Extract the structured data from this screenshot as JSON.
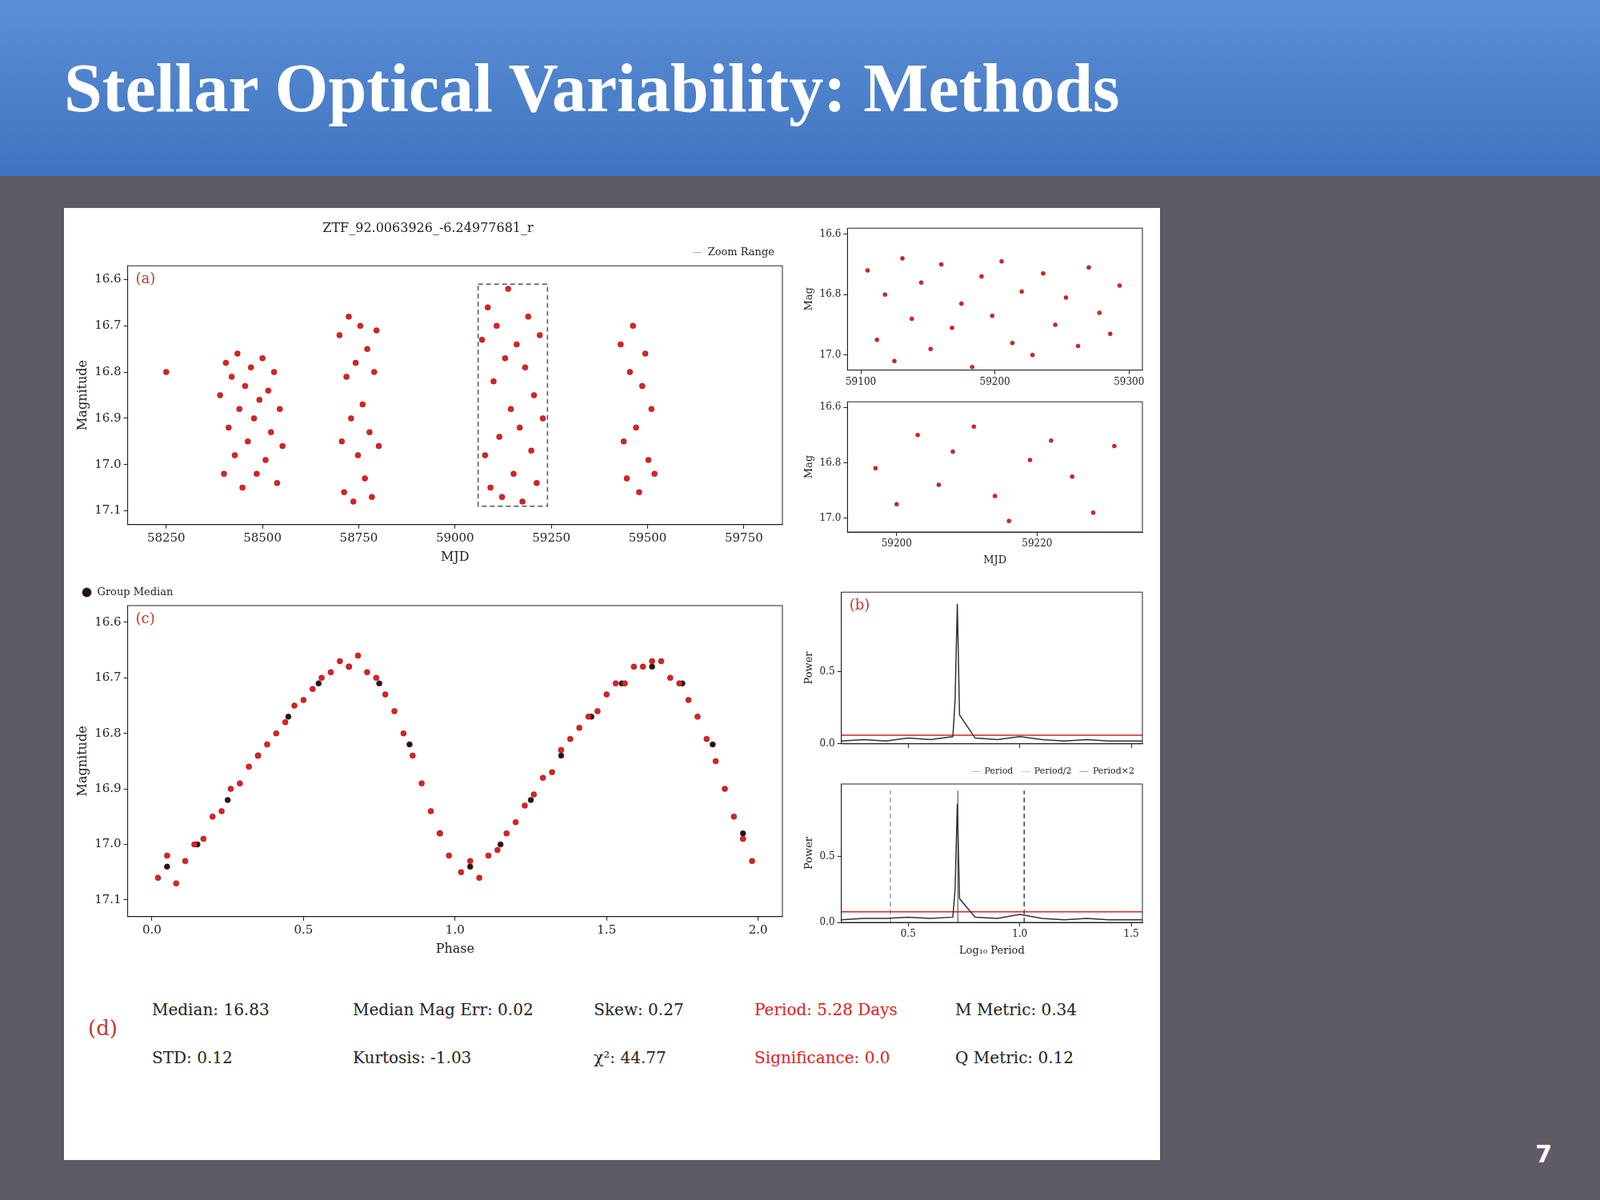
{
  "slide": {
    "title": "Stellar Optical Variability: Methods",
    "page_number": "7"
  },
  "chart_data": [
    {
      "type": "scatter",
      "title": "ZTF_92.0063926_-6.24977681_r",
      "x_label": "MJD",
      "y_label": "Magnitude",
      "xlim": [
        58150,
        59850
      ],
      "xticks": [
        58250,
        58500,
        58750,
        59000,
        59250,
        59500,
        59750
      ],
      "ylim": [
        17.13,
        16.57
      ],
      "yticks": [
        16.6,
        16.7,
        16.8,
        16.9,
        {
          "value": 17,
          "label": "17.0"
        },
        17.1
      ],
      "grid": false,
      "legend": "upper right",
      "annotations": [
        {
          "text": "(a)",
          "color": "#c0392b"
        }
      ],
      "series": [
        {
          "type": "scatter",
          "marker": "circle",
          "color": "#e02020",
          "x": [
            58250,
            58390,
            58400,
            58405,
            58412,
            58420,
            58428,
            58435,
            58440,
            58448,
            58455,
            58462,
            58470,
            58478,
            58485,
            58492,
            58500,
            58508,
            58515,
            58522,
            58530,
            58538,
            58545,
            58552,
            58700,
            58706,
            58712,
            58718,
            58724,
            58730,
            58736,
            58742,
            58748,
            58754,
            58760,
            58766,
            58772,
            58778,
            58784,
            58790,
            58796,
            58802,
            59070,
            59078,
            59085,
            59092,
            59100,
            59108,
            59115,
            59122,
            59130,
            59138,
            59145,
            59152,
            59160,
            59168,
            59175,
            59182,
            59190,
            59198,
            59205,
            59212,
            59220,
            59228,
            59430,
            59438,
            59446,
            59454,
            59462,
            59470,
            59478,
            59486,
            59494,
            59502,
            59510,
            59518
          ],
          "values": [
            16.8,
            16.85,
            17.02,
            16.78,
            16.92,
            16.81,
            16.98,
            16.76,
            16.88,
            17.05,
            16.83,
            16.95,
            16.79,
            16.9,
            17.02,
            16.86,
            16.77,
            16.99,
            16.84,
            16.93,
            16.8,
            17.04,
            16.88,
            16.96,
            16.72,
            16.95,
            17.06,
            16.81,
            16.68,
            16.9,
            17.08,
            16.78,
            16.98,
            16.7,
            16.87,
            17.03,
            16.75,
            16.93,
            17.07,
            16.8,
            16.71,
            16.96,
            16.73,
            16.98,
            16.66,
            17.05,
            16.82,
            16.7,
            16.94,
            17.07,
            16.77,
            16.62,
            16.88,
            17.02,
            16.74,
            16.92,
            17.08,
            16.79,
            16.68,
            16.97,
            16.85,
            17.04,
            16.72,
            16.9,
            16.74,
            16.95,
            17.03,
            16.8,
            16.7,
            16.92,
            17.06,
            16.83,
            16.76,
            16.99,
            16.88,
            17.02
          ]
        },
        {
          "name": "Zoom Range",
          "type": "line",
          "line_style": "dashed",
          "marker": "none",
          "color": "#555555",
          "x": [
            59060,
            59240,
            59240,
            59060,
            59060
          ],
          "values": [
            16.61,
            16.61,
            17.09,
            17.09,
            16.61
          ]
        }
      ]
    },
    {
      "type": "scatter",
      "y_label": "Mag",
      "xlim": [
        59090,
        59310
      ],
      "xticks": [
        59100,
        59200,
        59300
      ],
      "ylim": [
        17.05,
        16.58
      ],
      "yticks": [
        16.6,
        16.8,
        {
          "value": 17,
          "label": "17.0"
        }
      ],
      "grid": false,
      "series": [
        {
          "type": "scatter",
          "marker": "circle",
          "color": "#e02020",
          "x": [
            59105,
            59112,
            59118,
            59125,
            59131,
            59138,
            59145,
            59152,
            59160,
            59168,
            59175,
            59183,
            59190,
            59198,
            59205,
            59213,
            59220,
            59228,
            59236,
            59245,
            59253,
            59262,
            59270,
            59278,
            59286,
            59293
          ],
          "values": [
            16.72,
            16.95,
            16.8,
            17.02,
            16.68,
            16.88,
            16.76,
            16.98,
            16.7,
            16.91,
            16.83,
            17.04,
            16.74,
            16.87,
            16.69,
            16.96,
            16.79,
            17.0,
            16.73,
            16.9,
            16.81,
            16.97,
            16.71,
            16.86,
            16.93,
            16.77
          ]
        }
      ]
    },
    {
      "type": "scatter",
      "x_label": "MJD",
      "y_label": "Mag",
      "xlim": [
        59193,
        59235
      ],
      "xticks": [
        59200,
        59220
      ],
      "ylim": [
        17.05,
        16.58
      ],
      "yticks": [
        16.6,
        16.8,
        {
          "value": 17,
          "label": "17.0"
        }
      ],
      "grid": false,
      "series": [
        {
          "type": "scatter",
          "marker": "circle",
          "color": "#e02020",
          "x": [
            59197,
            59200,
            59203,
            59206,
            59208,
            59211,
            59214,
            59216,
            59219,
            59222,
            59225,
            59228,
            59231
          ],
          "values": [
            16.82,
            16.95,
            16.7,
            16.88,
            16.76,
            16.67,
            16.92,
            17.01,
            16.79,
            16.72,
            16.85,
            16.98,
            16.74
          ]
        }
      ]
    },
    {
      "type": "scatter",
      "x_label": "Phase",
      "y_label": "Magnitude",
      "xlim": [
        -0.08,
        2.08
      ],
      "xticks": [
        {
          "value": 0,
          "label": "0.0"
        },
        0.5,
        {
          "value": 1,
          "label": "1.0"
        },
        1.5,
        {
          "value": 2,
          "label": "2.0"
        }
      ],
      "ylim": [
        17.13,
        16.57
      ],
      "yticks": [
        16.6,
        16.7,
        16.8,
        16.9,
        {
          "value": 17,
          "label": "17.0"
        },
        17.1
      ],
      "grid": false,
      "legend": "upper left",
      "annotations": [
        {
          "text": "(c)",
          "color": "#c0392b"
        }
      ],
      "series": [
        {
          "type": "scatter",
          "marker": "circle",
          "color": "#e02020",
          "x": [
            0.02,
            0.05,
            0.08,
            0.11,
            0.14,
            0.17,
            0.2,
            0.23,
            0.26,
            0.29,
            0.32,
            0.35,
            0.38,
            0.41,
            0.44,
            0.47,
            0.5,
            0.53,
            0.56,
            0.59,
            0.62,
            0.65,
            0.68,
            0.71,
            0.74,
            0.77,
            0.8,
            0.83,
            0.86,
            0.89,
            0.92,
            0.95,
            0.98,
            1.02,
            1.05,
            1.08,
            1.11,
            1.14,
            1.17,
            1.2,
            1.23,
            1.26,
            1.29,
            1.32,
            1.35,
            1.38,
            1.41,
            1.44,
            1.47,
            1.5,
            1.53,
            1.56,
            1.59,
            1.62,
            1.65,
            1.68,
            1.71,
            1.74,
            1.77,
            1.8,
            1.83,
            1.86,
            1.89,
            1.92,
            1.95,
            1.98
          ],
          "values": [
            17.06,
            17.02,
            17.07,
            17.03,
            17.0,
            16.99,
            16.95,
            16.94,
            16.9,
            16.89,
            16.86,
            16.84,
            16.82,
            16.8,
            16.78,
            16.75,
            16.74,
            16.72,
            16.7,
            16.69,
            16.67,
            16.68,
            16.66,
            16.69,
            16.7,
            16.73,
            16.76,
            16.8,
            16.84,
            16.89,
            16.94,
            16.98,
            17.02,
            17.05,
            17.03,
            17.06,
            17.02,
            17.01,
            16.98,
            16.96,
            16.93,
            16.91,
            16.88,
            16.87,
            16.83,
            16.81,
            16.79,
            16.77,
            16.76,
            16.73,
            16.71,
            16.71,
            16.68,
            16.68,
            16.67,
            16.67,
            16.7,
            16.71,
            16.74,
            16.77,
            16.81,
            16.85,
            16.9,
            16.95,
            16.99,
            17.03
          ]
        },
        {
          "name": "Group Median",
          "type": "scatter",
          "marker": "circle",
          "color": "#1a1a1a",
          "x": [
            0.05,
            0.15,
            0.25,
            0.35,
            0.45,
            0.55,
            0.65,
            0.75,
            0.85,
            0.95,
            1.05,
            1.15,
            1.25,
            1.35,
            1.45,
            1.55,
            1.65,
            1.75,
            1.85,
            1.95
          ],
          "values": [
            17.04,
            17.0,
            16.92,
            16.84,
            16.77,
            16.71,
            16.68,
            16.71,
            16.82,
            16.98,
            17.04,
            17.0,
            16.92,
            16.84,
            16.77,
            16.71,
            16.68,
            16.71,
            16.82,
            16.98
          ]
        }
      ]
    },
    {
      "type": "line",
      "y_label": "Power",
      "xlim": [
        0.2,
        1.55
      ],
      "xticks": [
        0.5,
        {
          "value": 1,
          "label": "1.0"
        },
        1.5
      ],
      "ylim": [
        0,
        1.05
      ],
      "yticks": [
        {
          "value": 0,
          "label": "0.0"
        },
        0.5
      ],
      "grid": false,
      "tick_labels": "y",
      "annotations": [
        {
          "text": "(b)",
          "color": "#c0392b"
        }
      ],
      "series": [
        {
          "type": "line",
          "marker": "none",
          "line_style": "solid",
          "color": "#333333",
          "x": [
            0.2,
            0.3,
            0.4,
            0.5,
            0.6,
            0.7,
            0.71,
            0.72,
            0.73,
            0.8,
            0.9,
            1.0,
            1.1,
            1.2,
            1.3,
            1.4,
            1.55
          ],
          "values": [
            0.02,
            0.03,
            0.02,
            0.04,
            0.03,
            0.05,
            0.3,
            0.97,
            0.2,
            0.04,
            0.03,
            0.05,
            0.03,
            0.02,
            0.03,
            0.02,
            0.02
          ]
        },
        {
          "type": "line",
          "marker": "none",
          "line_style": "solid",
          "color": "#e02020",
          "x": [
            0.2,
            1.55
          ],
          "values": [
            0.06,
            0.06
          ]
        }
      ]
    },
    {
      "type": "line",
      "x_label": "Log₁₀ Period",
      "y_label": "Power",
      "xlim": [
        0.2,
        1.55
      ],
      "xticks": [
        0.5,
        {
          "value": 1,
          "label": "1.0"
        },
        1.5
      ],
      "ylim": [
        0,
        1.05
      ],
      "yticks": [
        {
          "value": 0,
          "label": "0.0"
        },
        0.5
      ],
      "grid": false,
      "legend": "upper right",
      "series": [
        {
          "type": "line",
          "marker": "none",
          "line_style": "solid",
          "color": "#333333",
          "x": [
            0.2,
            0.3,
            0.4,
            0.5,
            0.6,
            0.7,
            0.71,
            0.72,
            0.73,
            0.8,
            0.9,
            1.0,
            1.1,
            1.2,
            1.3,
            1.4,
            1.55
          ],
          "values": [
            0.02,
            0.03,
            0.03,
            0.04,
            0.03,
            0.04,
            0.25,
            0.9,
            0.18,
            0.04,
            0.03,
            0.06,
            0.03,
            0.02,
            0.03,
            0.02,
            0.02
          ]
        },
        {
          "type": "line",
          "marker": "none",
          "line_style": "solid",
          "color": "#e02020",
          "x": [
            0.2,
            1.55
          ],
          "values": [
            0.08,
            0.08
          ]
        },
        {
          "name": "Period",
          "type": "line",
          "marker": "none",
          "line_style": "solid",
          "color": "#777777",
          "x": [
            0.7226,
            0.7226
          ],
          "values": [
            0,
            1.0
          ]
        },
        {
          "name": "Period/2",
          "type": "line",
          "marker": "none",
          "line_style": "dashed",
          "color": "#999999",
          "x": [
            0.42,
            0.42
          ],
          "values": [
            0,
            1.0
          ]
        },
        {
          "name": "Period×2",
          "type": "line",
          "marker": "none",
          "line_style": "dashed",
          "color": "#444444",
          "x": [
            1.02,
            1.02
          ],
          "values": [
            0,
            1.0
          ]
        }
      ]
    }
  ],
  "stats_panel": {
    "label": "(d)",
    "label_color": "#c0392b",
    "rows": [
      [
        {
          "text": "Median: 16.83"
        },
        {
          "text": "Median Mag Err: 0.02"
        },
        {
          "text": "Skew: 0.27"
        },
        {
          "text": "Period: 5.28 Days",
          "color": "#e02020"
        },
        {
          "text": "M Metric: 0.34"
        }
      ],
      [
        {
          "text": "STD: 0.12"
        },
        {
          "text": "Kurtosis: -1.03"
        },
        {
          "text": "χ²: 44.77"
        },
        {
          "text": "Significance: 0.0",
          "color": "#e02020"
        },
        {
          "text": "Q Metric: 0.12"
        }
      ]
    ]
  }
}
